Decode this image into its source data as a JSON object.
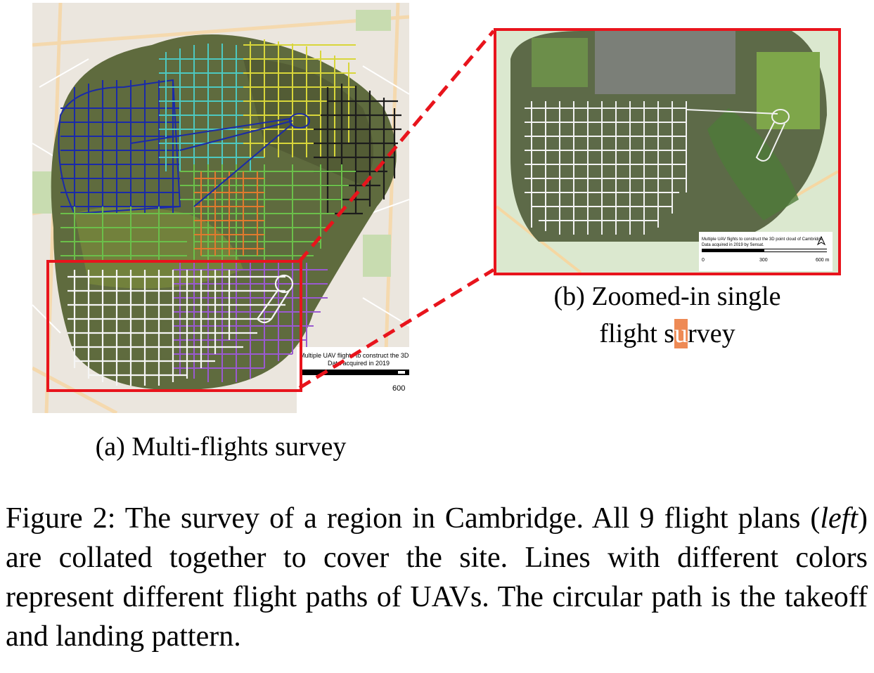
{
  "figure": {
    "label": "Figure 2:",
    "caption_part1": "The survey of a region in Cambridge. All 9 flight plans (",
    "caption_italic": "left",
    "caption_part2": ") are collated together to cover the site. Lines with different colors represent different flight paths of UAVs. The circular path is the takeoff and landing pattern."
  },
  "panel_a": {
    "caption": "(a) Multi-flights survey",
    "map_note_line1": "Multiple UAV flights to construct the 3D",
    "map_note_line2": "Data acquired in 2019",
    "scale_value": "600",
    "flight_colors": [
      "#1a2aa8",
      "#4dc8c0",
      "#d8d63a",
      "#262626",
      "#6bbf4a",
      "#e07a2e",
      "#9a5ad0",
      "#ffffff"
    ]
  },
  "panel_b": {
    "caption_line1": "(b) Zoomed-in single",
    "caption_line2_pre": "flight s",
    "caption_line2_hl": "u",
    "caption_line2_post": "rvey",
    "map_note_line1": "Multiple UAV flights to construct the 3D point cloud of Cambridge",
    "map_note_line2": "Data acquired in 2019 by Sensat.",
    "scale_0": "0",
    "scale_300": "300",
    "scale_600": "600 m"
  },
  "colors": {
    "highlight": "#ee8a55",
    "zoom_frame": "#e8141c"
  }
}
